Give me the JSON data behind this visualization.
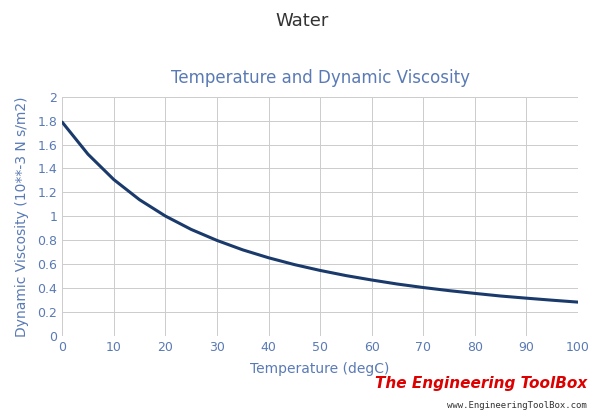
{
  "title": "Water",
  "subtitle": "Temperature and Dynamic Viscosity",
  "xlabel": "Temperature (degC)",
  "ylabel": "Dynamic Viscosity (10**-3 N s/m2)",
  "xlim": [
    0,
    100
  ],
  "ylim": [
    0,
    2.0
  ],
  "xticks": [
    0,
    10,
    20,
    30,
    40,
    50,
    60,
    70,
    80,
    90,
    100
  ],
  "yticks": [
    0,
    0.2,
    0.4,
    0.6,
    0.8,
    1.0,
    1.2,
    1.4,
    1.6,
    1.8,
    2.0
  ],
  "ytick_labels": [
    "0",
    "0.2",
    "0.4",
    "0.6",
    "0.8",
    "1",
    "1.2",
    "1.4",
    "1.6",
    "1.8",
    "2"
  ],
  "line_color": "#1a3a6b",
  "line_width": 2.2,
  "background_color": "#ffffff",
  "grid_color": "#cccccc",
  "title_fontsize": 13,
  "subtitle_fontsize": 12,
  "axis_label_fontsize": 10,
  "tick_fontsize": 9,
  "text_color": "#5a7ab5",
  "watermark_text": "The Engineering ToolBox",
  "watermark_url": "www.EngineeringToolBox.com",
  "watermark_color": "#dd0000",
  "watermark_url_color": "#333333",
  "temp_data": [
    0,
    5,
    10,
    15,
    20,
    25,
    30,
    35,
    40,
    45,
    50,
    55,
    60,
    65,
    70,
    75,
    80,
    85,
    90,
    95,
    100
  ],
  "visc_data": [
    1.787,
    1.519,
    1.307,
    1.138,
    1.002,
    0.89,
    0.798,
    0.719,
    0.653,
    0.596,
    0.547,
    0.504,
    0.467,
    0.433,
    0.404,
    0.378,
    0.355,
    0.333,
    0.315,
    0.298,
    0.282
  ]
}
